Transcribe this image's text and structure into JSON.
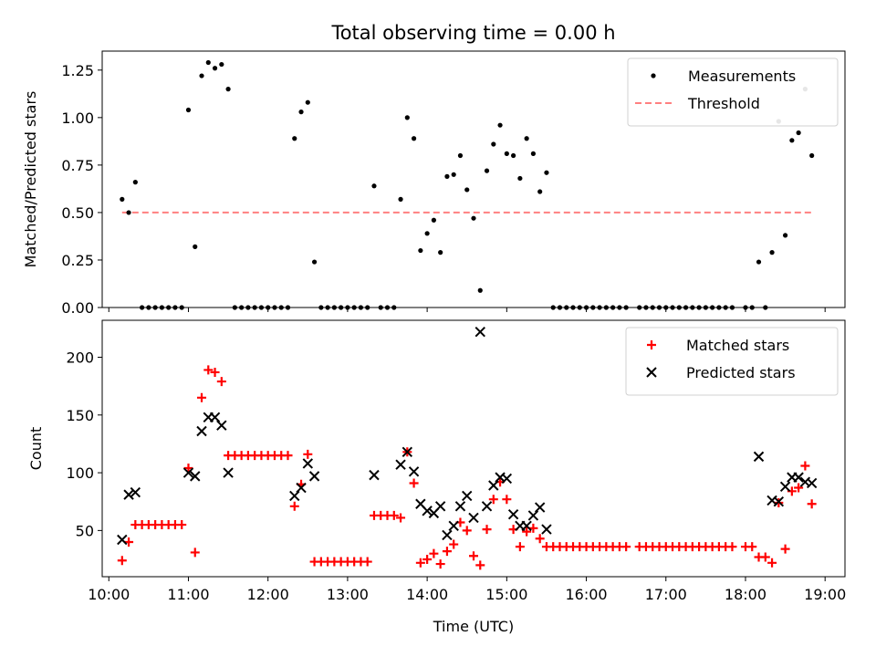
{
  "title": "Total observing time = 0.00 h",
  "chart_data": [
    {
      "type": "scatter",
      "ylabel": "Matched/Predicted stars",
      "xlabel": "",
      "ylim": [
        0,
        1.35
      ],
      "xlim": [
        "09:55",
        "19:15"
      ],
      "yticks": [
        "0.00",
        "0.25",
        "0.50",
        "0.75",
        "1.00",
        "1.25"
      ],
      "legend_position": "top-right",
      "threshold": {
        "name": "Threshold",
        "value": 0.5,
        "x": [
          "10:10",
          "18:50"
        ],
        "color": "#ff8080"
      },
      "series": [
        {
          "name": "Measurements",
          "color": "#000000",
          "points": [
            [
              "10:10",
              0.57
            ],
            [
              "10:15",
              0.5
            ],
            [
              "10:20",
              0.66
            ],
            [
              "10:25",
              0.0
            ],
            [
              "10:30",
              0.0
            ],
            [
              "10:35",
              0.0
            ],
            [
              "10:40",
              0.0
            ],
            [
              "10:45",
              0.0
            ],
            [
              "10:50",
              0.0
            ],
            [
              "10:55",
              0.0
            ],
            [
              "11:00",
              1.04
            ],
            [
              "11:05",
              0.32
            ],
            [
              "11:10",
              1.22
            ],
            [
              "11:15",
              1.29
            ],
            [
              "11:20",
              1.26
            ],
            [
              "11:25",
              1.28
            ],
            [
              "11:30",
              1.15
            ],
            [
              "11:35",
              0.0
            ],
            [
              "11:40",
              0.0
            ],
            [
              "11:45",
              0.0
            ],
            [
              "11:50",
              0.0
            ],
            [
              "11:55",
              0.0
            ],
            [
              "12:00",
              0.0
            ],
            [
              "12:05",
              0.0
            ],
            [
              "12:10",
              0.0
            ],
            [
              "12:15",
              0.0
            ],
            [
              "12:20",
              0.89
            ],
            [
              "12:25",
              1.03
            ],
            [
              "12:30",
              1.08
            ],
            [
              "12:35",
              0.24
            ],
            [
              "12:40",
              0.0
            ],
            [
              "12:45",
              0.0
            ],
            [
              "12:50",
              0.0
            ],
            [
              "12:55",
              0.0
            ],
            [
              "13:00",
              0.0
            ],
            [
              "13:05",
              0.0
            ],
            [
              "13:10",
              0.0
            ],
            [
              "13:15",
              0.0
            ],
            [
              "13:20",
              0.64
            ],
            [
              "13:25",
              0.0
            ],
            [
              "13:30",
              0.0
            ],
            [
              "13:35",
              0.0
            ],
            [
              "13:40",
              0.57
            ],
            [
              "13:45",
              1.0
            ],
            [
              "13:50",
              0.89
            ],
            [
              "13:55",
              0.3
            ],
            [
              "14:00",
              0.39
            ],
            [
              "14:05",
              0.46
            ],
            [
              "14:10",
              0.29
            ],
            [
              "14:15",
              0.69
            ],
            [
              "14:20",
              0.7
            ],
            [
              "14:25",
              0.8
            ],
            [
              "14:30",
              0.62
            ],
            [
              "14:35",
              0.47
            ],
            [
              "14:40",
              0.09
            ],
            [
              "14:45",
              0.72
            ],
            [
              "14:50",
              0.86
            ],
            [
              "14:55",
              0.96
            ],
            [
              "15:00",
              0.81
            ],
            [
              "15:05",
              0.8
            ],
            [
              "15:10",
              0.68
            ],
            [
              "15:15",
              0.89
            ],
            [
              "15:20",
              0.81
            ],
            [
              "15:25",
              0.61
            ],
            [
              "15:30",
              0.71
            ],
            [
              "15:35",
              0.0
            ],
            [
              "15:40",
              0.0
            ],
            [
              "15:45",
              0.0
            ],
            [
              "15:50",
              0.0
            ],
            [
              "15:55",
              0.0
            ],
            [
              "16:00",
              0.0
            ],
            [
              "16:05",
              0.0
            ],
            [
              "16:10",
              0.0
            ],
            [
              "16:15",
              0.0
            ],
            [
              "16:20",
              0.0
            ],
            [
              "16:25",
              0.0
            ],
            [
              "16:30",
              0.0
            ],
            [
              "16:40",
              0.0
            ],
            [
              "16:45",
              0.0
            ],
            [
              "16:50",
              0.0
            ],
            [
              "16:55",
              0.0
            ],
            [
              "17:00",
              0.0
            ],
            [
              "17:05",
              0.0
            ],
            [
              "17:10",
              0.0
            ],
            [
              "17:15",
              0.0
            ],
            [
              "17:20",
              0.0
            ],
            [
              "17:25",
              0.0
            ],
            [
              "17:30",
              0.0
            ],
            [
              "17:35",
              0.0
            ],
            [
              "17:40",
              0.0
            ],
            [
              "17:45",
              0.0
            ],
            [
              "17:50",
              0.0
            ],
            [
              "18:00",
              0.0
            ],
            [
              "18:05",
              0.0
            ],
            [
              "18:10",
              0.24
            ],
            [
              "18:15",
              0.0
            ],
            [
              "18:20",
              0.29
            ],
            [
              "18:25",
              0.98
            ],
            [
              "18:30",
              0.38
            ],
            [
              "18:35",
              0.88
            ],
            [
              "18:40",
              0.92
            ],
            [
              "18:45",
              1.15
            ],
            [
              "18:50",
              0.8
            ]
          ]
        }
      ]
    },
    {
      "type": "scatter",
      "ylabel": "Count",
      "xlabel": "Time (UTC)",
      "ylim": [
        10,
        232
      ],
      "xlim": [
        "09:55",
        "19:15"
      ],
      "yticks": [
        "50",
        "100",
        "150",
        "200"
      ],
      "xticks": [
        "10:00",
        "11:00",
        "12:00",
        "13:00",
        "14:00",
        "15:00",
        "16:00",
        "17:00",
        "18:00",
        "19:00"
      ],
      "legend_position": "top-right",
      "series": [
        {
          "name": "Matched stars",
          "marker": "+",
          "color": "#ff0000",
          "points": [
            [
              "10:10",
              24
            ],
            [
              "10:15",
              40
            ],
            [
              "10:20",
              55
            ],
            [
              "10:25",
              55
            ],
            [
              "10:30",
              55
            ],
            [
              "10:35",
              55
            ],
            [
              "10:40",
              55
            ],
            [
              "10:45",
              55
            ],
            [
              "10:50",
              55
            ],
            [
              "10:55",
              55
            ],
            [
              "11:00",
              104
            ],
            [
              "11:05",
              31
            ],
            [
              "11:10",
              165
            ],
            [
              "11:15",
              189
            ],
            [
              "11:20",
              187
            ],
            [
              "11:25",
              179
            ],
            [
              "11:30",
              115
            ],
            [
              "11:35",
              115
            ],
            [
              "11:40",
              115
            ],
            [
              "11:45",
              115
            ],
            [
              "11:50",
              115
            ],
            [
              "11:55",
              115
            ],
            [
              "12:00",
              115
            ],
            [
              "12:05",
              115
            ],
            [
              "12:10",
              115
            ],
            [
              "12:15",
              115
            ],
            [
              "12:20",
              71
            ],
            [
              "12:25",
              90
            ],
            [
              "12:30",
              116
            ],
            [
              "12:35",
              23
            ],
            [
              "12:40",
              23
            ],
            [
              "12:45",
              23
            ],
            [
              "12:50",
              23
            ],
            [
              "12:55",
              23
            ],
            [
              "13:00",
              23
            ],
            [
              "13:05",
              23
            ],
            [
              "13:10",
              23
            ],
            [
              "13:15",
              23
            ],
            [
              "13:20",
              63
            ],
            [
              "13:25",
              63
            ],
            [
              "13:30",
              63
            ],
            [
              "13:35",
              63
            ],
            [
              "13:40",
              61
            ],
            [
              "13:45",
              118
            ],
            [
              "13:50",
              91
            ],
            [
              "13:55",
              22
            ],
            [
              "14:00",
              25
            ],
            [
              "14:05",
              30
            ],
            [
              "14:10",
              21
            ],
            [
              "14:15",
              32
            ],
            [
              "14:20",
              38
            ],
            [
              "14:25",
              57
            ],
            [
              "14:30",
              50
            ],
            [
              "14:35",
              28
            ],
            [
              "14:40",
              20
            ],
            [
              "14:45",
              51
            ],
            [
              "14:50",
              77
            ],
            [
              "14:55",
              92
            ],
            [
              "15:00",
              77
            ],
            [
              "15:05",
              51
            ],
            [
              "15:10",
              36
            ],
            [
              "15:15",
              49
            ],
            [
              "15:20",
              52
            ],
            [
              "15:25",
              43
            ],
            [
              "15:30",
              36
            ],
            [
              "15:35",
              36
            ],
            [
              "15:40",
              36
            ],
            [
              "15:45",
              36
            ],
            [
              "15:50",
              36
            ],
            [
              "15:55",
              36
            ],
            [
              "16:00",
              36
            ],
            [
              "16:05",
              36
            ],
            [
              "16:10",
              36
            ],
            [
              "16:15",
              36
            ],
            [
              "16:20",
              36
            ],
            [
              "16:25",
              36
            ],
            [
              "16:30",
              36
            ],
            [
              "16:40",
              36
            ],
            [
              "16:45",
              36
            ],
            [
              "16:50",
              36
            ],
            [
              "16:55",
              36
            ],
            [
              "17:00",
              36
            ],
            [
              "17:05",
              36
            ],
            [
              "17:10",
              36
            ],
            [
              "17:15",
              36
            ],
            [
              "17:20",
              36
            ],
            [
              "17:25",
              36
            ],
            [
              "17:30",
              36
            ],
            [
              "17:35",
              36
            ],
            [
              "17:40",
              36
            ],
            [
              "17:45",
              36
            ],
            [
              "17:50",
              36
            ],
            [
              "18:00",
              36
            ],
            [
              "18:05",
              36
            ],
            [
              "18:10",
              27
            ],
            [
              "18:15",
              27
            ],
            [
              "18:20",
              22
            ],
            [
              "18:25",
              74
            ],
            [
              "18:30",
              34
            ],
            [
              "18:35",
              84
            ],
            [
              "18:40",
              87
            ],
            [
              "18:45",
              106
            ],
            [
              "18:50",
              73
            ]
          ]
        },
        {
          "name": "Predicted stars",
          "marker": "x",
          "color": "#000000",
          "points": [
            [
              "10:10",
              42
            ],
            [
              "10:15",
              81
            ],
            [
              "10:20",
              83
            ],
            [
              "11:00",
              100
            ],
            [
              "11:05",
              97
            ],
            [
              "11:10",
              136
            ],
            [
              "11:15",
              148
            ],
            [
              "11:20",
              148
            ],
            [
              "11:25",
              141
            ],
            [
              "11:30",
              100
            ],
            [
              "12:20",
              80
            ],
            [
              "12:25",
              87
            ],
            [
              "12:30",
              108
            ],
            [
              "12:35",
              97
            ],
            [
              "13:20",
              98
            ],
            [
              "13:40",
              107
            ],
            [
              "13:45",
              118
            ],
            [
              "13:50",
              101
            ],
            [
              "13:55",
              73
            ],
            [
              "14:00",
              67
            ],
            [
              "14:05",
              65
            ],
            [
              "14:10",
              71
            ],
            [
              "14:15",
              46
            ],
            [
              "14:20",
              54
            ],
            [
              "14:25",
              71
            ],
            [
              "14:30",
              80
            ],
            [
              "14:35",
              61
            ],
            [
              "14:40",
              222
            ],
            [
              "14:45",
              71
            ],
            [
              "14:50",
              89
            ],
            [
              "14:55",
              96
            ],
            [
              "15:00",
              95
            ],
            [
              "15:05",
              64
            ],
            [
              "15:10",
              54
            ],
            [
              "15:15",
              54
            ],
            [
              "15:20",
              63
            ],
            [
              "15:25",
              70
            ],
            [
              "15:30",
              51
            ],
            [
              "18:10",
              114
            ],
            [
              "18:20",
              76
            ],
            [
              "18:25",
              75
            ],
            [
              "18:30",
              88
            ],
            [
              "18:35",
              96
            ],
            [
              "18:40",
              96
            ],
            [
              "18:45",
              92
            ],
            [
              "18:50",
              91
            ]
          ]
        }
      ]
    }
  ]
}
